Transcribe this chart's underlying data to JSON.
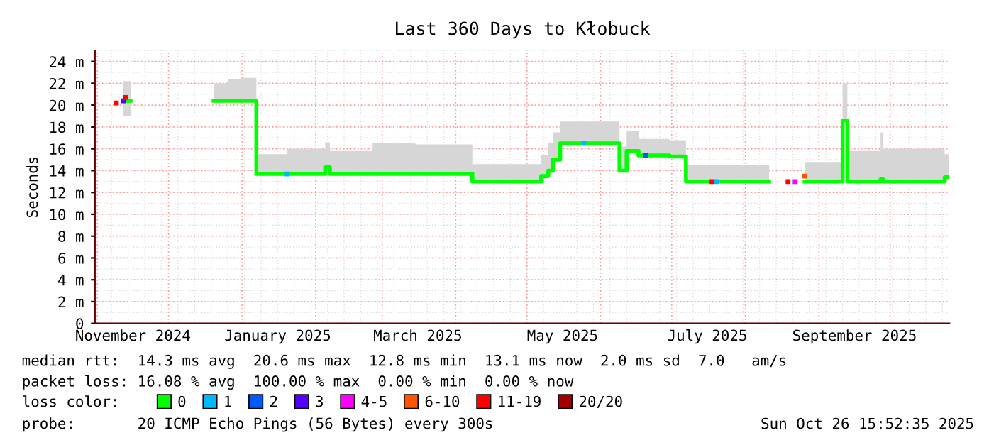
{
  "chart_data": {
    "type": "step",
    "title": "Last 360 Days to Kłobuck",
    "ylabel": "Seconds",
    "legend_title": "loss color:",
    "legend": "bottom",
    "grid": true,
    "xlim": [
      "2024-10-31",
      "2025-10-26"
    ],
    "xticks": [
      {
        "value": "2024-11-16",
        "label": "November 2024"
      },
      {
        "value": "2025-01-16",
        "label": "January 2025"
      },
      {
        "value": "2025-03-16",
        "label": "March 2025"
      },
      {
        "value": "2025-05-16",
        "label": "May 2025"
      },
      {
        "value": "2025-07-16",
        "label": "July 2025"
      },
      {
        "value": "2025-09-16",
        "label": "September 2025"
      }
    ],
    "ylim": [
      0,
      25
    ],
    "yticks": [
      0,
      {
        "value": 2,
        "label": "2 m"
      },
      {
        "value": 4,
        "label": "4 m"
      },
      {
        "value": 6,
        "label": "6 m"
      },
      {
        "value": 8,
        "label": "8 m"
      },
      {
        "value": 10,
        "label": "10 m"
      },
      {
        "value": 12,
        "label": "12 m"
      },
      {
        "value": 14,
        "label": "14 m"
      },
      {
        "value": 16,
        "label": "16 m"
      },
      {
        "value": 18,
        "label": "18 m"
      },
      {
        "value": 20,
        "label": "20 m"
      },
      {
        "value": 22,
        "label": "22 m"
      },
      {
        "value": 24,
        "label": "24 m"
      }
    ],
    "series": [
      {
        "name": "0",
        "color": "#00ff00",
        "x": [
          "2024-11-12",
          "2024-11-15",
          "2024-12-20",
          "2024-12-26",
          "2025-01-01",
          "2025-01-07",
          "2025-01-20",
          "2025-02-05",
          "2025-02-07",
          "2025-02-25",
          "2025-03-15",
          "2025-04-08",
          "2025-05-07",
          "2025-05-10",
          "2025-05-12",
          "2025-05-15",
          "2025-06-09",
          "2025-06-12",
          "2025-06-17",
          "2025-06-30",
          "2025-07-07",
          "2025-08-11",
          "2025-08-26",
          "2025-09-11",
          "2025-09-13",
          "2025-09-27",
          "2025-09-28",
          "2025-10-24",
          "2025-10-26"
        ],
        "values": [
          20.4,
          null,
          20.4,
          20.4,
          20.4,
          13.7,
          13.7,
          14.3,
          13.7,
          13.7,
          13.7,
          13.0,
          13.5,
          14.0,
          15.0,
          16.5,
          14.0,
          15.8,
          15.4,
          15.3,
          13.0,
          null,
          13.0,
          18.6,
          13.0,
          13.2,
          13.0,
          13.4,
          13.4
        ],
        "lower": [
          19.0,
          null,
          20.4,
          20.4,
          20.4,
          13.7,
          13.7,
          14.3,
          13.7,
          13.7,
          13.7,
          13.0,
          13.5,
          14.0,
          15.0,
          16.5,
          14.0,
          15.8,
          15.4,
          15.3,
          13.0,
          null,
          13.0,
          18.6,
          13.0,
          13.2,
          13.0,
          13.4,
          13.4
        ],
        "upper": [
          22.2,
          null,
          22.0,
          22.4,
          22.5,
          15.5,
          16.0,
          16.6,
          15.8,
          16.5,
          16.4,
          14.6,
          15.4,
          16.5,
          17.5,
          18.5,
          16.2,
          17.6,
          16.9,
          16.8,
          14.5,
          null,
          14.8,
          22.0,
          15.8,
          17.5,
          16.0,
          15.5,
          16.0
        ]
      },
      {
        "name": "1",
        "color": "#00b8ff",
        "type": "scatter",
        "x": [
          "2025-01-20",
          "2025-05-25",
          "2025-07-20"
        ],
        "values": [
          13.7,
          16.5,
          13.0
        ]
      },
      {
        "name": "2",
        "color": "#0059ff",
        "type": "scatter",
        "x": [
          "2025-06-20"
        ],
        "values": [
          15.4
        ]
      },
      {
        "name": "3",
        "color": "#5500ff",
        "type": "scatter",
        "x": [
          "2024-11-12"
        ],
        "values": [
          20.4
        ]
      },
      {
        "name": "4-5",
        "color": "#ff00ff",
        "type": "scatter",
        "x": [
          "2025-08-22"
        ],
        "values": [
          13.0
        ]
      },
      {
        "name": "6-10",
        "color": "#ff5500",
        "type": "scatter",
        "x": [
          "2025-08-26"
        ],
        "values": [
          13.5
        ]
      },
      {
        "name": "11-19",
        "color": "#ff0000",
        "type": "scatter",
        "x": [
          "2024-11-09",
          "2024-11-13",
          "2025-07-18",
          "2025-08-19"
        ],
        "values": [
          20.2,
          20.7,
          13.0,
          13.0
        ]
      },
      {
        "name": "20/20",
        "color": "#a10000",
        "type": "scatter"
      }
    ],
    "annotations": [
      "median rtt:  14.3 ms avg  20.6 ms max  12.8 ms min  13.1 ms now  2.0 ms sd  7.0   am/s",
      "packet loss: 16.08 % avg  100.00 % max  0.00 % min  0.00 % now",
      "probe:       20 ICMP Echo Pings (56 Bytes) every 300s",
      "Sun Oct 26 15:52:35 2025"
    ]
  }
}
